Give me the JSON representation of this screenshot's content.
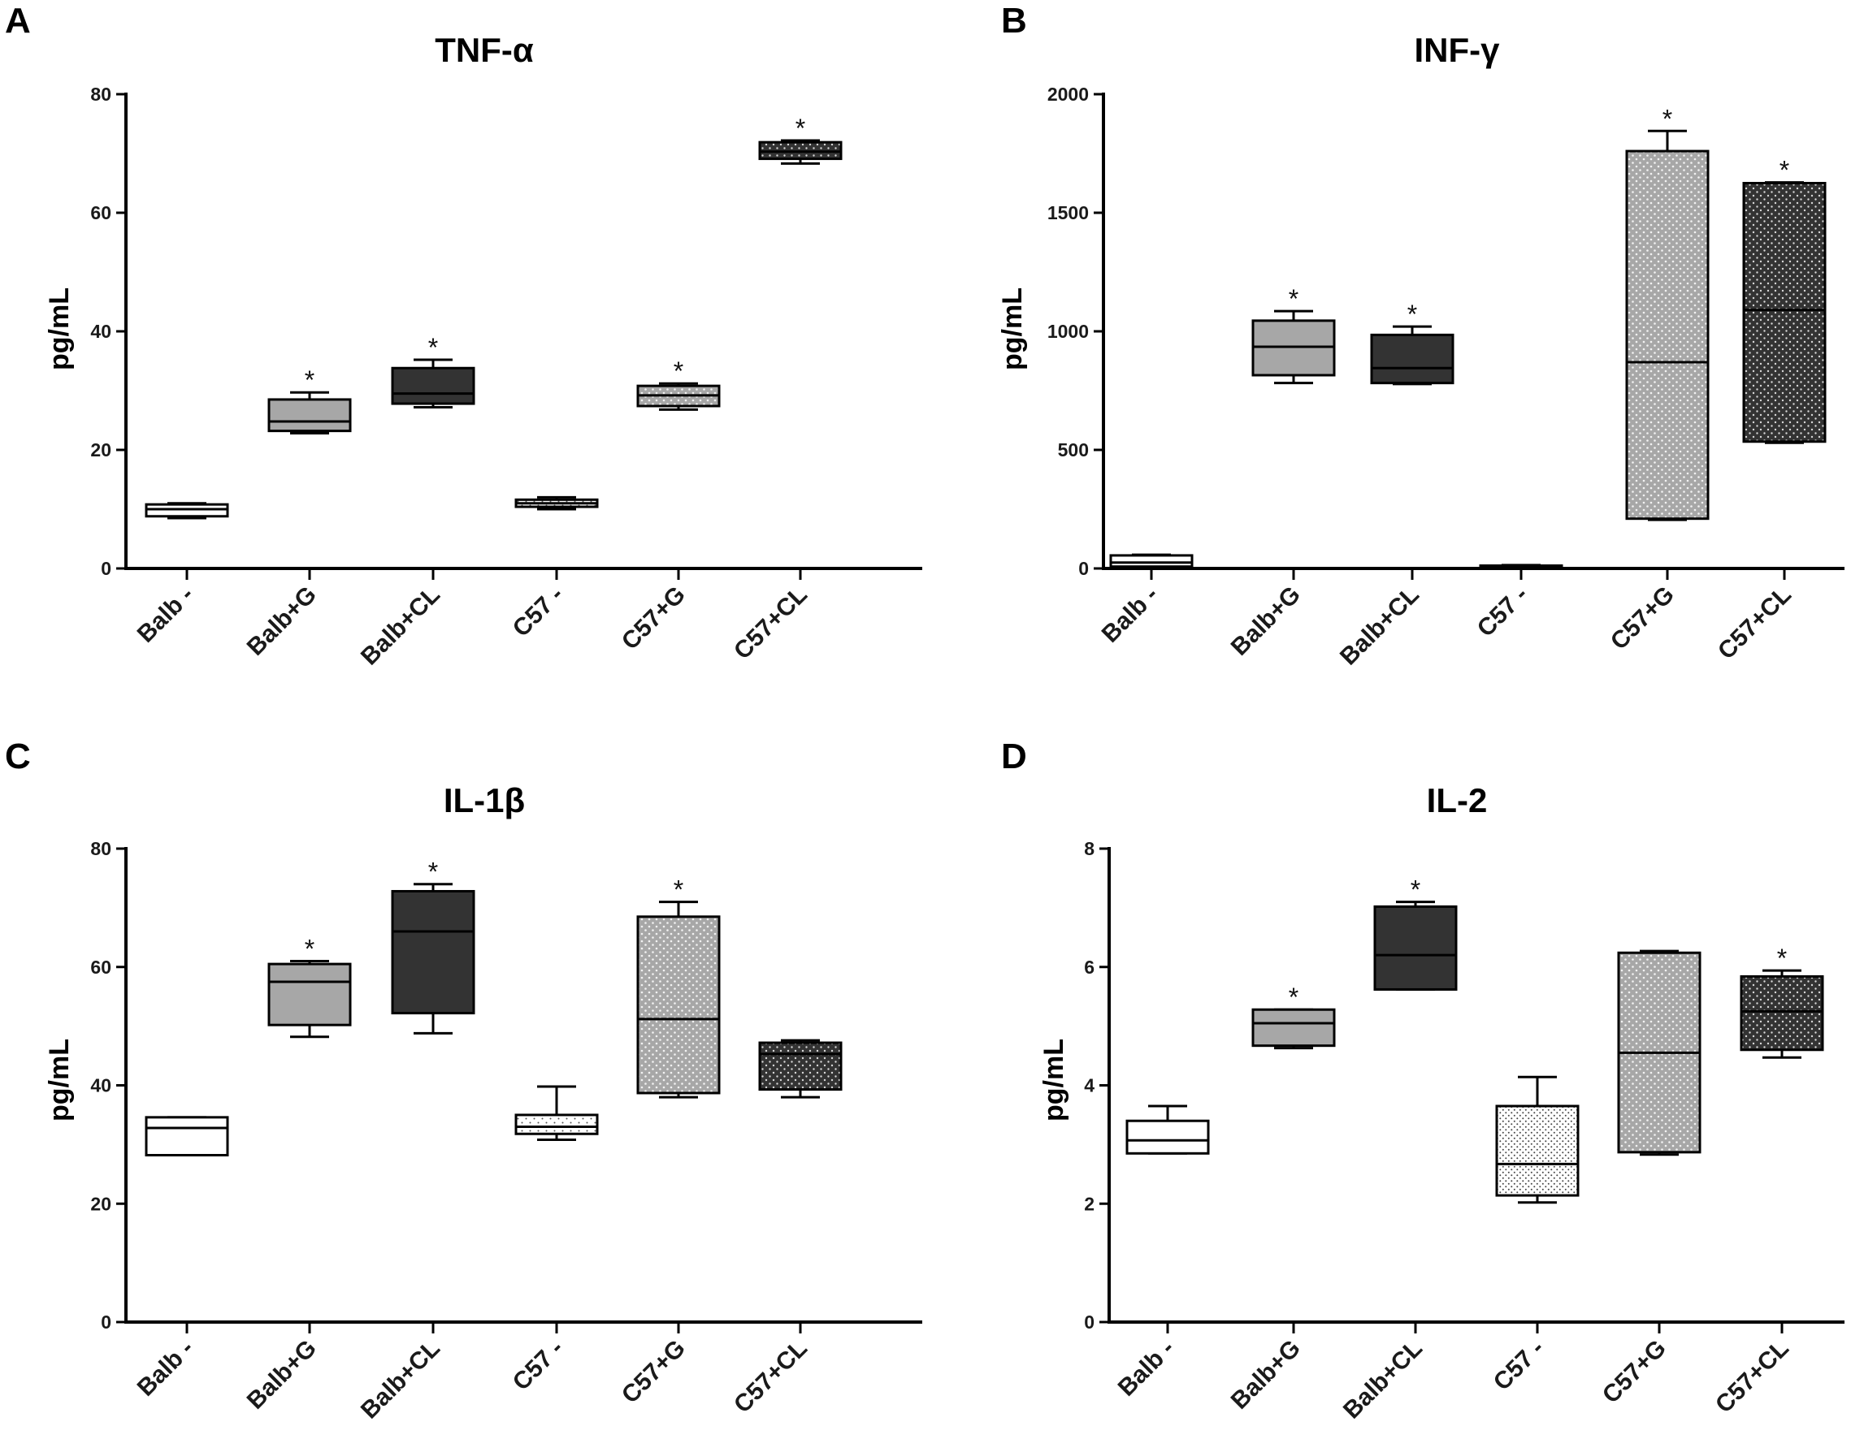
{
  "figure": {
    "panels": [
      "A",
      "B",
      "C",
      "D"
    ]
  },
  "colors": {
    "axis": "#000000",
    "white": "#ffffff",
    "light_gray": "#a7a7a7",
    "medium_gray": "#a0a0a0",
    "dark_gray": "#333333",
    "star": "#111111"
  },
  "chart_data": [
    {
      "panel": "A",
      "type": "boxplot",
      "title": "TNF-α",
      "ylabel": "pg/mL",
      "xlabel": "",
      "ylim": [
        0,
        80
      ],
      "yticks": [
        "0",
        "20",
        "40",
        "60",
        "80"
      ],
      "categories": [
        "Balb -",
        "Balb+G",
        "Balb+CL",
        "C57 -",
        "C57+G",
        "C57+CL"
      ],
      "boxes": [
        {
          "min": 8.5,
          "q1": 8.8,
          "median": 10.0,
          "q3": 10.8,
          "max": 11.0,
          "fill": "white",
          "pattern": "none",
          "star": false
        },
        {
          "min": 22.8,
          "q1": 23.2,
          "median": 24.8,
          "q3": 28.5,
          "max": 29.7,
          "fill": "light_gray",
          "pattern": "none",
          "star": true
        },
        {
          "min": 27.2,
          "q1": 27.8,
          "median": 29.5,
          "q3": 33.8,
          "max": 35.2,
          "fill": "dark_gray",
          "pattern": "none",
          "star": true
        },
        {
          "min": 10.0,
          "q1": 10.4,
          "median": 11.0,
          "q3": 11.6,
          "max": 12.0,
          "fill": "white",
          "pattern": "dots",
          "star": false
        },
        {
          "min": 26.8,
          "q1": 27.4,
          "median": 29.2,
          "q3": 30.8,
          "max": 31.2,
          "fill": "light_gray",
          "pattern": "dots",
          "star": true
        },
        {
          "min": 68.3,
          "q1": 69.1,
          "median": 70.3,
          "q3": 71.9,
          "max": 72.2,
          "fill": "dark_gray",
          "pattern": "dots",
          "star": true
        }
      ]
    },
    {
      "panel": "B",
      "type": "boxplot",
      "title": "INF-γ",
      "ylabel": "pg/mL",
      "xlabel": "",
      "ylim": [
        0,
        2000
      ],
      "yticks": [
        "0",
        "500",
        "1000",
        "1500",
        "2000"
      ],
      "categories": [
        "Balb -",
        "Balb+G",
        "Balb+CL",
        "C57 -",
        "C57+G",
        "C57+CL"
      ],
      "boxes": [
        {
          "min": 5,
          "q1": 8,
          "median": 25,
          "q3": 55,
          "max": 58,
          "fill": "white",
          "pattern": "none",
          "star": false
        },
        {
          "min": 782,
          "q1": 815,
          "median": 935,
          "q3": 1045,
          "max": 1085,
          "fill": "light_gray",
          "pattern": "none",
          "star": true
        },
        {
          "min": 778,
          "q1": 782,
          "median": 845,
          "q3": 985,
          "max": 1020,
          "fill": "dark_gray",
          "pattern": "none",
          "star": true
        },
        {
          "min": 4,
          "q1": 5,
          "median": 8,
          "q3": 12,
          "max": 14,
          "fill": "white",
          "pattern": "dots",
          "star": false
        },
        {
          "min": 205,
          "q1": 210,
          "median": 870,
          "q3": 1760,
          "max": 1845,
          "fill": "light_gray",
          "pattern": "dots",
          "star": true
        },
        {
          "min": 530,
          "q1": 535,
          "median": 1090,
          "q3": 1625,
          "max": 1628,
          "fill": "dark_gray",
          "pattern": "dots",
          "star": true
        }
      ]
    },
    {
      "panel": "C",
      "type": "boxplot",
      "title": "IL-1β",
      "ylabel": "pg/mL",
      "xlabel": "",
      "ylim": [
        0,
        80
      ],
      "yticks": [
        "0",
        "20",
        "40",
        "60",
        "80"
      ],
      "categories": [
        "Balb -",
        "Balb+G",
        "Balb+CL",
        "C57 -",
        "C57+G",
        "C57+CL"
      ],
      "boxes": [
        {
          "min": 28.2,
          "q1": 28.2,
          "median": 32.8,
          "q3": 34.6,
          "max": 34.6,
          "fill": "white",
          "pattern": "none",
          "star": false
        },
        {
          "min": 48.2,
          "q1": 50.2,
          "median": 57.5,
          "q3": 60.5,
          "max": 61.0,
          "fill": "light_gray",
          "pattern": "none",
          "star": true
        },
        {
          "min": 48.8,
          "q1": 52.2,
          "median": 66.0,
          "q3": 72.8,
          "max": 74.0,
          "fill": "dark_gray",
          "pattern": "none",
          "star": true
        },
        {
          "min": 30.8,
          "q1": 31.8,
          "median": 33.0,
          "q3": 35.0,
          "max": 39.8,
          "fill": "white",
          "pattern": "dots",
          "star": false
        },
        {
          "min": 38.0,
          "q1": 38.7,
          "median": 51.2,
          "q3": 68.5,
          "max": 71.0,
          "fill": "light_gray",
          "pattern": "dots",
          "star": true
        },
        {
          "min": 38.0,
          "q1": 39.3,
          "median": 45.3,
          "q3": 47.2,
          "max": 47.6,
          "fill": "dark_gray",
          "pattern": "dots",
          "star": false
        }
      ]
    },
    {
      "panel": "D",
      "type": "boxplot",
      "title": "IL-2",
      "ylabel": "pg/mL",
      "xlabel": "",
      "ylim": [
        0,
        8
      ],
      "yticks": [
        "0",
        "2",
        "4",
        "6",
        "8"
      ],
      "categories": [
        "Balb -",
        "Balb+G",
        "Balb+CL",
        "C57 -",
        "C57+G",
        "C57+CL"
      ],
      "boxes": [
        {
          "min": 2.85,
          "q1": 2.85,
          "median": 3.07,
          "q3": 3.4,
          "max": 3.65,
          "fill": "white",
          "pattern": "none",
          "star": false
        },
        {
          "min": 4.63,
          "q1": 4.67,
          "median": 5.05,
          "q3": 5.28,
          "max": 5.28,
          "fill": "light_gray",
          "pattern": "none",
          "star": true
        },
        {
          "min": 5.62,
          "q1": 5.62,
          "median": 6.2,
          "q3": 7.02,
          "max": 7.1,
          "fill": "dark_gray",
          "pattern": "none",
          "star": true
        },
        {
          "min": 2.02,
          "q1": 2.14,
          "median": 2.67,
          "q3": 3.65,
          "max": 4.14,
          "fill": "white",
          "pattern": "dots_dense",
          "star": false
        },
        {
          "min": 2.83,
          "q1": 2.87,
          "median": 4.55,
          "q3": 6.24,
          "max": 6.27,
          "fill": "light_gray",
          "pattern": "dots",
          "star": false
        },
        {
          "min": 4.47,
          "q1": 4.6,
          "median": 5.25,
          "q3": 5.84,
          "max": 5.94,
          "fill": "dark_gray",
          "pattern": "dots",
          "star": true
        }
      ]
    }
  ],
  "star_symbol": "*"
}
